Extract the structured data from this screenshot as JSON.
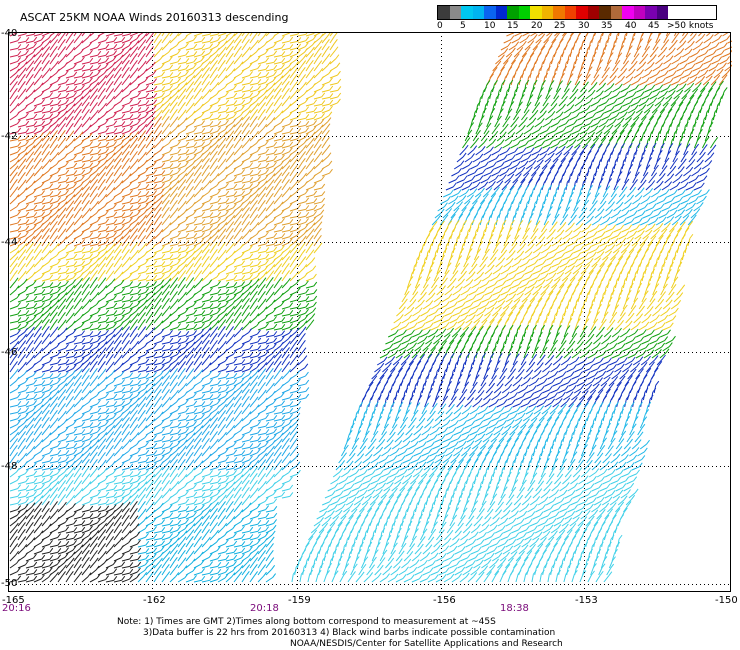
{
  "title": "ASCAT 25KM NOAA Winds 20160313 descending",
  "legend": {
    "ticks": [
      "0",
      "5",
      "10",
      "15",
      "20",
      "25",
      "30",
      "35",
      "40",
      "45",
      ">50 knots"
    ],
    "colors": [
      "#3c3c3c",
      "#8a8a8a",
      "#00c8f0",
      "#00b4f0",
      "#0a64f0",
      "#0028d0",
      "#00a000",
      "#00d000",
      "#f0e000",
      "#f0b400",
      "#f07800",
      "#f04000",
      "#e00000",
      "#a00000",
      "#5a2a00",
      "#b06a3a",
      "#f000f0",
      "#c000c0",
      "#7a00b0",
      "#4a0080"
    ]
  },
  "lat_labels": [
    "-40",
    "-42",
    "-44",
    "-46",
    "-48",
    "-50"
  ],
  "lon_labels": [
    "-165",
    "-162",
    "-159",
    "-156",
    "-153",
    "-150"
  ],
  "time_labels": [
    "20:16",
    "20:18",
    "18:38"
  ],
  "notes": {
    "line1": "Note: 1) Times are GMT 2)Times along bottom correspond to measurement at ~45S",
    "line2": "3)Data buffer is 22 hrs from 20160313 4) Black wind barbs indicate possible contamination",
    "line3": "NOAA/NESDIS/Center for Satellite Applications and Research"
  }
}
